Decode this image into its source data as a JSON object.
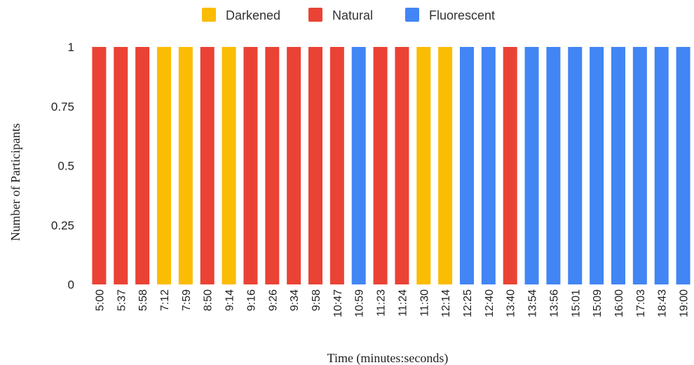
{
  "chart_data": {
    "type": "bar",
    "title": "",
    "xlabel": "Time (minutes:seconds)",
    "ylabel": "Number of Participants",
    "ylim": [
      0,
      1
    ],
    "yticks": [
      "0",
      "0.25",
      "0.5",
      "0.75",
      "1"
    ],
    "legend_position": "top-center",
    "grid": false,
    "series": [
      {
        "name": "Darkened",
        "color": "#FBBC04"
      },
      {
        "name": "Natural",
        "color": "#EA4335"
      },
      {
        "name": "Fluorescent",
        "color": "#4285F4"
      }
    ],
    "categories": [
      "5:00",
      "5:37",
      "5:58",
      "7:12",
      "7:59",
      "8:50",
      "9:14",
      "9:16",
      "9:26",
      "9:34",
      "9:58",
      "10:47",
      "10:59",
      "11:23",
      "11:24",
      "11:30",
      "12:14",
      "12:25",
      "12:40",
      "13:40",
      "13:54",
      "13:56",
      "15:01",
      "15:09",
      "16:00",
      "17:03",
      "18:43",
      "19:00"
    ],
    "values": [
      1,
      1,
      1,
      1,
      1,
      1,
      1,
      1,
      1,
      1,
      1,
      1,
      1,
      1,
      1,
      1,
      1,
      1,
      1,
      1,
      1,
      1,
      1,
      1,
      1,
      1,
      1,
      1
    ],
    "bar_series": [
      "Natural",
      "Natural",
      "Natural",
      "Darkened",
      "Darkened",
      "Natural",
      "Darkened",
      "Natural",
      "Natural",
      "Natural",
      "Natural",
      "Natural",
      "Fluorescent",
      "Natural",
      "Natural",
      "Darkened",
      "Darkened",
      "Fluorescent",
      "Fluorescent",
      "Natural",
      "Fluorescent",
      "Fluorescent",
      "Fluorescent",
      "Fluorescent",
      "Fluorescent",
      "Fluorescent",
      "Fluorescent",
      "Fluorescent"
    ]
  }
}
